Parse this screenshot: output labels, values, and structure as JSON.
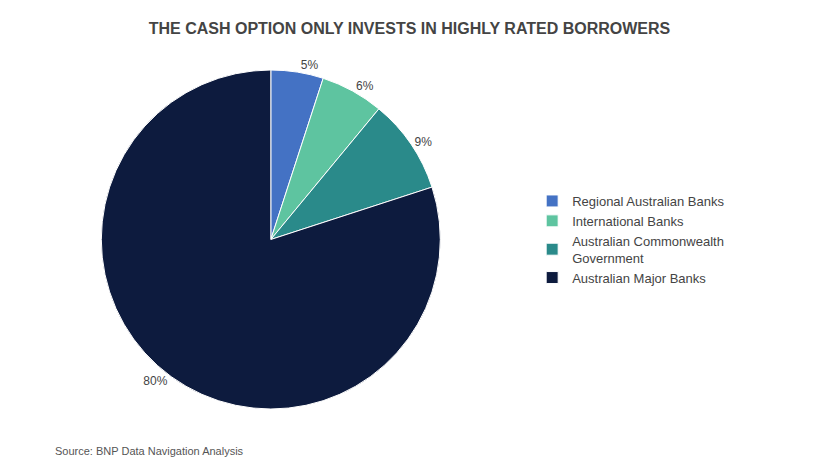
{
  "chart_data": {
    "type": "pie",
    "title": "THE CASH OPTION ONLY INVESTS IN HIGHLY RATED BORROWERS",
    "categories": [
      "Regional Australian Banks",
      "International Banks",
      "Australian Commonwealth\nGovernment",
      "Australian Major Banks"
    ],
    "values": [
      5,
      6,
      9,
      80
    ],
    "value_labels": [
      "5%",
      "6%",
      "9%",
      "80%"
    ],
    "colors": [
      "#4472C4",
      "#5EC4A0",
      "#2A8A8A",
      "#0D1B3E"
    ],
    "data_labels": true,
    "legend": "right",
    "annotations": [
      "Source: BNP Data Navigation Analysis"
    ]
  }
}
